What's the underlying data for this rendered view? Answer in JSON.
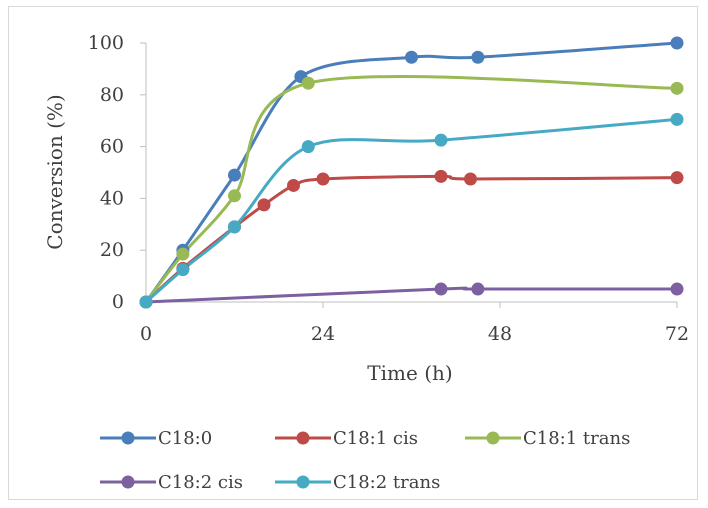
{
  "chart_data": {
    "type": "line",
    "title": "",
    "xlabel": "Time (h)",
    "ylabel": "Conversion (%)",
    "xlim": [
      0,
      72
    ],
    "ylim": [
      0,
      100
    ],
    "xticks": [
      0,
      24,
      48,
      72
    ],
    "yticks": [
      0,
      20,
      40,
      60,
      80,
      100
    ],
    "grid": false,
    "smooth": true,
    "legend_position": "bottom",
    "series": [
      {
        "name": "C18:0",
        "color": "#4a7ebb",
        "x": [
          0,
          5,
          12,
          21,
          36,
          45,
          72
        ],
        "y": [
          0,
          20,
          49,
          87,
          94.5,
          94.5,
          100
        ],
        "markers": [
          true,
          true,
          true,
          true,
          true,
          true,
          true
        ]
      },
      {
        "name": "C18:1 cis",
        "color": "#be4b48",
        "x": [
          0,
          5,
          12,
          16,
          20,
          24,
          40,
          44,
          72
        ],
        "y": [
          0,
          13,
          29,
          37.5,
          45,
          47.5,
          48.5,
          47.5,
          48
        ],
        "markers": [
          true,
          true,
          true,
          true,
          true,
          true,
          true,
          true,
          true
        ]
      },
      {
        "name": "C18:1 trans",
        "color": "#98b954",
        "x": [
          0,
          5,
          12,
          22,
          72
        ],
        "y": [
          0,
          18.5,
          41,
          84.5,
          82.5
        ],
        "markers": [
          true,
          true,
          true,
          true,
          true
        ]
      },
      {
        "name": "C18:2 cis",
        "color": "#7d60a0",
        "x": [
          0,
          40,
          45,
          72
        ],
        "y": [
          0,
          5,
          5,
          5
        ],
        "markers": [
          false,
          true,
          true,
          true
        ]
      },
      {
        "name": "C18:2 trans",
        "color": "#46aac5",
        "x": [
          0,
          5,
          12,
          22,
          40,
          72
        ],
        "y": [
          0,
          12.5,
          29,
          60,
          62.5,
          70.5
        ],
        "markers": [
          true,
          true,
          true,
          true,
          true,
          true
        ]
      }
    ]
  }
}
